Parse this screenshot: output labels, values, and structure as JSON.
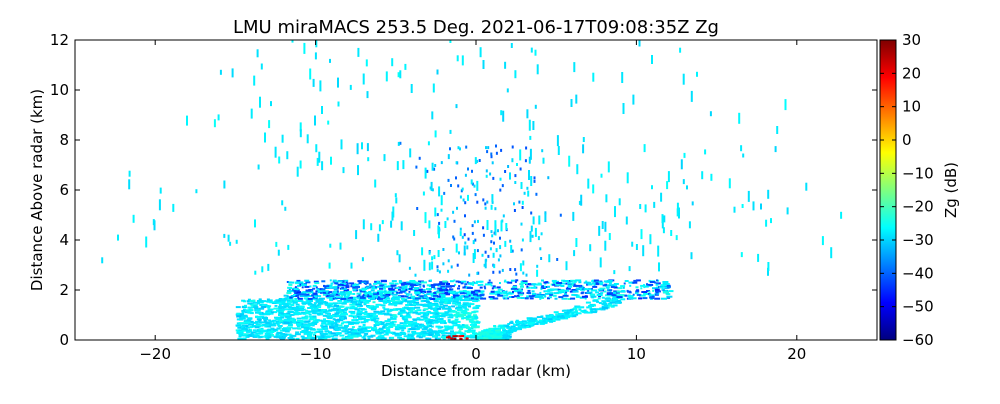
{
  "chart_data": {
    "type": "heatmap",
    "title": "LMU miraMACS 253.5 Deg. 2021-06-17T09:08:35Z  Zg",
    "xlabel": "Distance from radar (km)",
    "ylabel": "Distance Above radar  (km)",
    "xlim": [
      -25,
      25
    ],
    "ylim": [
      0,
      12
    ],
    "xticks": [
      -20,
      -10,
      0,
      10,
      20
    ],
    "yticks": [
      0,
      2,
      4,
      6,
      8,
      10,
      12
    ],
    "colorbar": {
      "label": "Zg (dB)",
      "range": [
        -60,
        30
      ],
      "ticks": [
        30,
        20,
        10,
        0,
        -10,
        -20,
        -30,
        -40,
        -50,
        -60
      ],
      "colormap": "jet"
    },
    "grid": false,
    "regions": [
      {
        "name": "low-level cone",
        "x": [
          -15,
          10
        ],
        "y": [
          0,
          2.2
        ],
        "zg_typical": -28
      },
      {
        "name": "layer near 2 km",
        "x": [
          -12,
          12
        ],
        "y": [
          1.6,
          2.4
        ],
        "zg_typical": -40
      },
      {
        "name": "sparse echoes aloft",
        "x": [
          -24,
          23
        ],
        "y": [
          2.4,
          12
        ],
        "zg_typical": -28
      }
    ]
  }
}
